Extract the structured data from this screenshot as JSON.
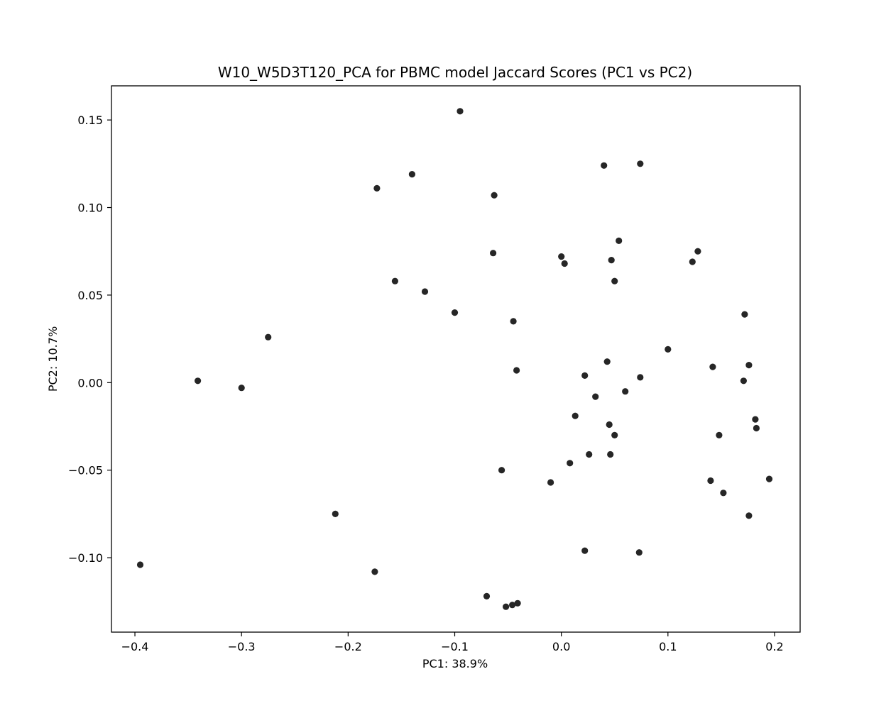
{
  "chart_data": {
    "type": "scatter",
    "title": "W10_W5D3T120_PCA for PBMC model Jaccard Scores (PC1 vs PC2)",
    "xlabel": "PC1: 38.9%",
    "ylabel": "PC2: 10.7%",
    "xlim": [
      -0.422,
      0.224
    ],
    "ylim": [
      -0.1425,
      0.1695
    ],
    "xticks": [
      -0.4,
      -0.3,
      -0.2,
      -0.1,
      0.0,
      0.1,
      0.2
    ],
    "xtick_labels": [
      "−0.4",
      "−0.3",
      "−0.2",
      "−0.1",
      "0.0",
      "0.1",
      "0.2"
    ],
    "yticks": [
      -0.1,
      -0.05,
      0.0,
      0.05,
      0.1,
      0.15
    ],
    "ytick_labels": [
      "−0.10",
      "−0.05",
      "0.00",
      "0.05",
      "0.10",
      "0.15"
    ],
    "grid": false,
    "point_color": "#262626",
    "points": [
      {
        "x": -0.095,
        "y": 0.155
      },
      {
        "x": 0.04,
        "y": 0.124
      },
      {
        "x": 0.074,
        "y": 0.125
      },
      {
        "x": -0.14,
        "y": 0.119
      },
      {
        "x": -0.173,
        "y": 0.111
      },
      {
        "x": -0.063,
        "y": 0.107
      },
      {
        "x": 0.054,
        "y": 0.081
      },
      {
        "x": 0.128,
        "y": 0.075
      },
      {
        "x": 0.123,
        "y": 0.069
      },
      {
        "x": -0.064,
        "y": 0.074
      },
      {
        "x": 0.0,
        "y": 0.072
      },
      {
        "x": 0.003,
        "y": 0.068
      },
      {
        "x": 0.047,
        "y": 0.07
      },
      {
        "x": 0.05,
        "y": 0.058
      },
      {
        "x": -0.156,
        "y": 0.058
      },
      {
        "x": -0.128,
        "y": 0.052
      },
      {
        "x": -0.1,
        "y": 0.04
      },
      {
        "x": -0.045,
        "y": 0.035
      },
      {
        "x": 0.172,
        "y": 0.039
      },
      {
        "x": -0.275,
        "y": 0.026
      },
      {
        "x": 0.1,
        "y": 0.019
      },
      {
        "x": 0.043,
        "y": 0.012
      },
      {
        "x": 0.176,
        "y": 0.01
      },
      {
        "x": 0.142,
        "y": 0.009
      },
      {
        "x": -0.042,
        "y": 0.007
      },
      {
        "x": 0.022,
        "y": 0.004
      },
      {
        "x": 0.074,
        "y": 0.003
      },
      {
        "x": -0.341,
        "y": 0.001
      },
      {
        "x": 0.171,
        "y": 0.001
      },
      {
        "x": -0.3,
        "y": -0.003
      },
      {
        "x": 0.06,
        "y": -0.005
      },
      {
        "x": 0.032,
        "y": -0.008
      },
      {
        "x": 0.013,
        "y": -0.019
      },
      {
        "x": 0.182,
        "y": -0.021
      },
      {
        "x": 0.045,
        "y": -0.024
      },
      {
        "x": 0.183,
        "y": -0.026
      },
      {
        "x": 0.05,
        "y": -0.03
      },
      {
        "x": 0.148,
        "y": -0.03
      },
      {
        "x": 0.026,
        "y": -0.041
      },
      {
        "x": 0.046,
        "y": -0.041
      },
      {
        "x": 0.008,
        "y": -0.046
      },
      {
        "x": -0.056,
        "y": -0.05
      },
      {
        "x": -0.01,
        "y": -0.057
      },
      {
        "x": 0.14,
        "y": -0.056
      },
      {
        "x": 0.195,
        "y": -0.055
      },
      {
        "x": 0.152,
        "y": -0.063
      },
      {
        "x": -0.212,
        "y": -0.075
      },
      {
        "x": 0.176,
        "y": -0.076
      },
      {
        "x": 0.022,
        "y": -0.096
      },
      {
        "x": 0.073,
        "y": -0.097
      },
      {
        "x": -0.395,
        "y": -0.104
      },
      {
        "x": -0.175,
        "y": -0.108
      },
      {
        "x": -0.07,
        "y": -0.122
      },
      {
        "x": -0.052,
        "y": -0.128
      },
      {
        "x": -0.046,
        "y": -0.127
      },
      {
        "x": -0.041,
        "y": -0.126
      }
    ]
  }
}
